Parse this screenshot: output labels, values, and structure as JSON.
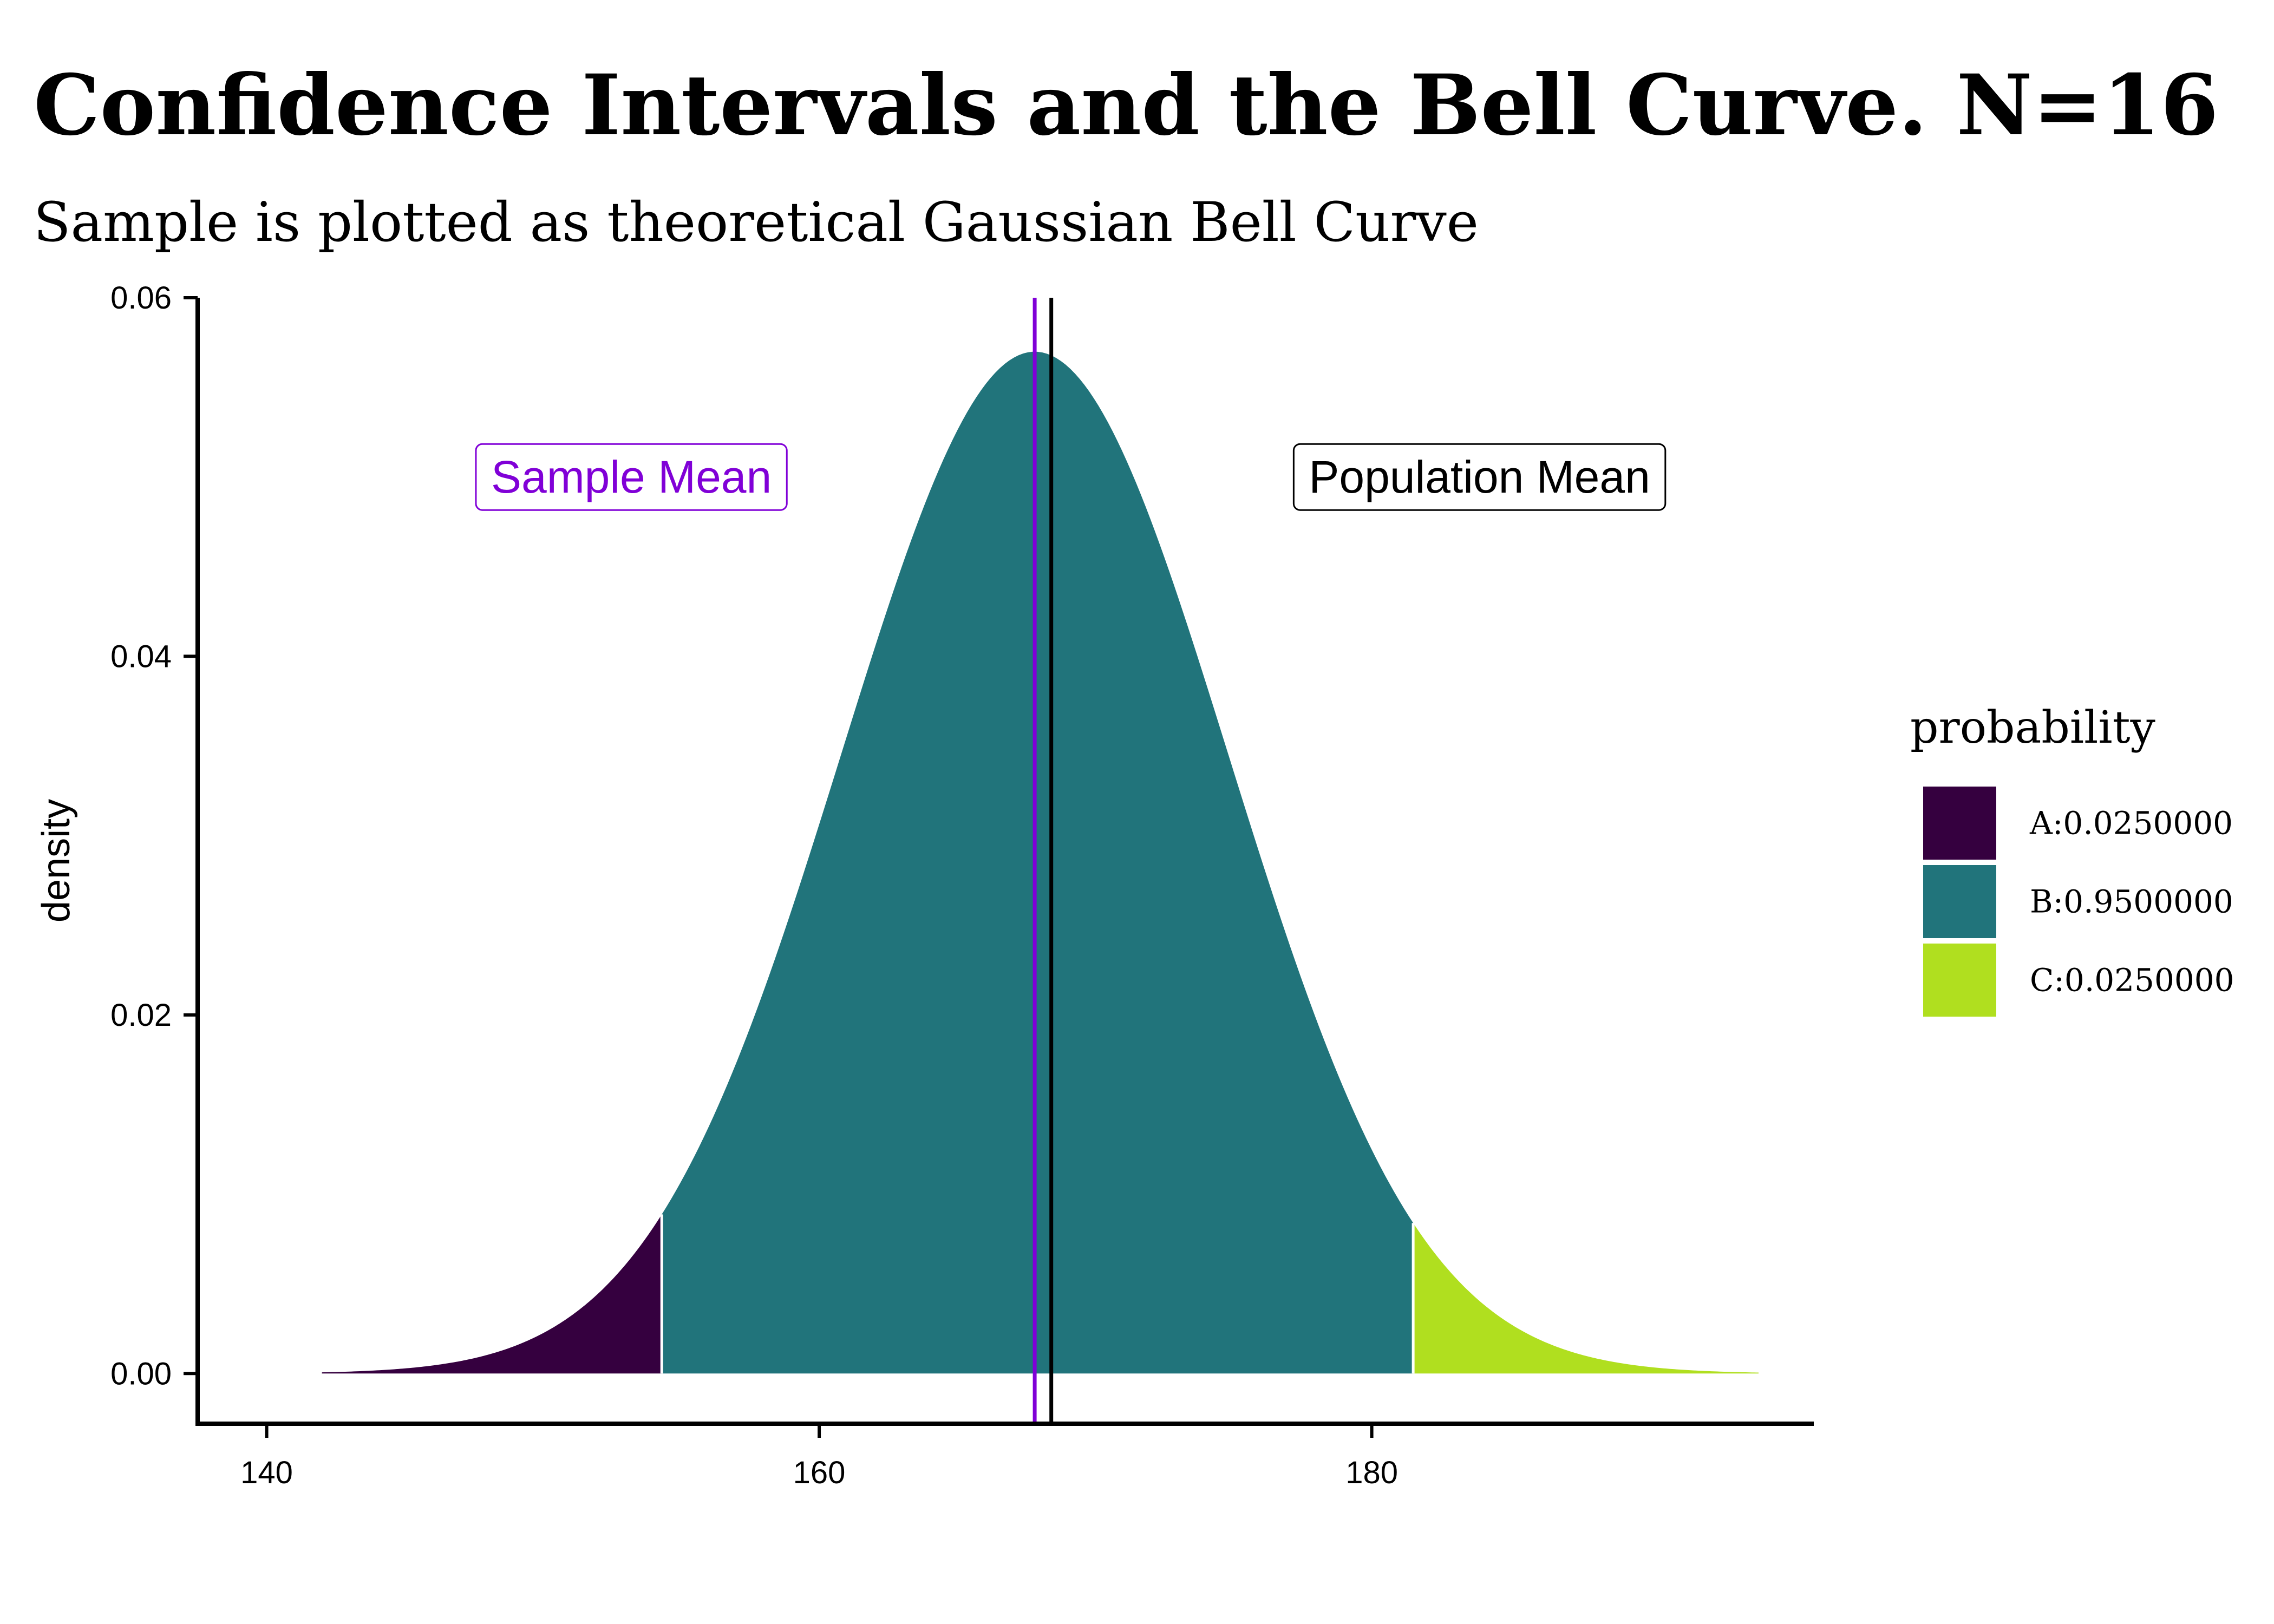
{
  "chart_data": {
    "type": "area",
    "title": "Confidence Intervals and the Bell Curve. N=16",
    "subtitle": "Sample is plotted as theoretical Gaussian Bell Curve",
    "xlabel": "",
    "ylabel": "density",
    "xlim": [
      137.5,
      196
    ],
    "ylim": [
      -0.0028,
      0.06
    ],
    "x_ticks": [
      {
        "value": 140,
        "label": "140"
      },
      {
        "value": 160,
        "label": "160"
      },
      {
        "value": 180,
        "label": "180"
      }
    ],
    "y_ticks": [
      {
        "value": 0,
        "label": "0.00"
      },
      {
        "value": 0.02,
        "label": "0.02"
      },
      {
        "value": 0.04,
        "label": "0.04"
      },
      {
        "value": 0.06,
        "label": "0.06"
      }
    ],
    "grid": false,
    "distribution": {
      "kind": "normal",
      "mean": 167.8,
      "sd": 7.0,
      "x_min": 142,
      "x_max": 194
    },
    "regions": [
      {
        "name": "A:0.0250000",
        "x_from": 142,
        "x_to": 154.3,
        "color": "#35003f"
      },
      {
        "name": "B:0.9500000",
        "x_from": 154.3,
        "x_to": 181.5,
        "color": "#21747b"
      },
      {
        "name": "C:0.0250000",
        "x_from": 181.5,
        "x_to": 194,
        "color": "#b0df1f"
      }
    ],
    "vertical_lines": [
      {
        "name": "sample-mean",
        "x": 167.8,
        "color": "#8000d7"
      },
      {
        "name": "population-mean",
        "x": 168.4,
        "color": "#000000"
      }
    ],
    "annotations": [
      {
        "name": "sample-mean-label",
        "text": "Sample Mean",
        "x": 153.2,
        "y": 0.05,
        "color": "#8000d7"
      },
      {
        "name": "population-mean-label",
        "text": "Population Mean",
        "x": 183.9,
        "y": 0.05,
        "color": "#000000"
      }
    ],
    "legend": {
      "title": "probability",
      "position": "right"
    }
  }
}
